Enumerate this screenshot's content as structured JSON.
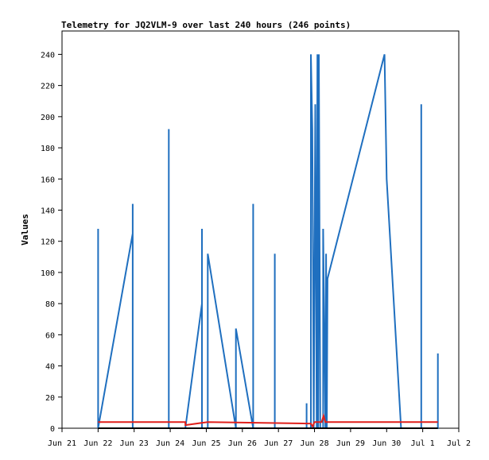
{
  "chart_data": {
    "type": "line",
    "title": "Telemetry for JQ2VLM-9 over last 240 hours (246 points)",
    "xlabel": "",
    "ylabel": "Values",
    "x_ticks": [
      "Jun 21",
      "Jun 22",
      "Jun 23",
      "Jun 24",
      "Jun 25",
      "Jun 26",
      "Jun 27",
      "Jun 28",
      "Jun 29",
      "Jun 30",
      "Jul 1",
      "Jul 2"
    ],
    "y_ticks": [
      0,
      20,
      40,
      60,
      80,
      100,
      120,
      140,
      160,
      180,
      200,
      220,
      240
    ],
    "xlim": [
      0,
      11
    ],
    "ylim": [
      0,
      255
    ],
    "grid": false,
    "series": [
      {
        "color": "#1f6fbf",
        "points": [
          [
            1.0,
            0
          ],
          [
            1.0,
            128
          ],
          [
            1.0,
            0
          ],
          [
            1.96,
            125
          ],
          [
            1.96,
            144
          ],
          [
            1.96,
            0
          ],
          [
            2.96,
            0
          ],
          [
            2.96,
            192
          ],
          [
            2.96,
            0
          ],
          [
            3.42,
            0
          ],
          [
            3.88,
            80
          ],
          [
            3.88,
            128
          ],
          [
            3.88,
            0
          ],
          [
            4.04,
            0
          ],
          [
            4.04,
            112
          ],
          [
            4.82,
            0
          ],
          [
            4.82,
            64
          ],
          [
            5.3,
            0
          ],
          [
            5.3,
            144
          ],
          [
            5.3,
            0
          ],
          [
            5.9,
            0
          ],
          [
            5.9,
            112
          ],
          [
            5.9,
            0
          ],
          [
            6.78,
            0
          ],
          [
            6.78,
            16
          ],
          [
            6.78,
            0
          ],
          [
            6.9,
            0
          ],
          [
            6.9,
            240
          ],
          [
            6.94,
            192
          ],
          [
            6.98,
            0
          ],
          [
            7.02,
            208
          ],
          [
            7.06,
            0
          ],
          [
            7.08,
            240
          ],
          [
            7.1,
            0
          ],
          [
            7.12,
            240
          ],
          [
            7.16,
            0
          ],
          [
            7.24,
            0
          ],
          [
            7.24,
            128
          ],
          [
            7.3,
            0
          ],
          [
            7.32,
            112
          ],
          [
            7.34,
            0
          ],
          [
            7.36,
            96
          ],
          [
            8.94,
            240
          ],
          [
            9.0,
            160
          ],
          [
            9.4,
            0
          ],
          [
            9.96,
            0
          ],
          [
            9.96,
            208
          ],
          [
            9.96,
            0
          ],
          [
            10.42,
            0
          ],
          [
            10.42,
            48
          ],
          [
            10.42,
            0
          ]
        ]
      },
      {
        "color": "#e0201b",
        "points": [
          [
            1.0,
            4
          ],
          [
            3.42,
            4
          ],
          [
            3.42,
            2
          ],
          [
            4.04,
            4
          ],
          [
            6.8,
            3
          ],
          [
            6.9,
            3
          ],
          [
            6.95,
            1
          ],
          [
            7.0,
            4
          ],
          [
            7.2,
            4
          ],
          [
            7.25,
            8
          ],
          [
            7.3,
            4
          ],
          [
            10.42,
            4
          ]
        ]
      },
      {
        "color": "#000000",
        "points": [
          [
            1.0,
            0
          ],
          [
            10.42,
            0
          ]
        ]
      }
    ]
  }
}
